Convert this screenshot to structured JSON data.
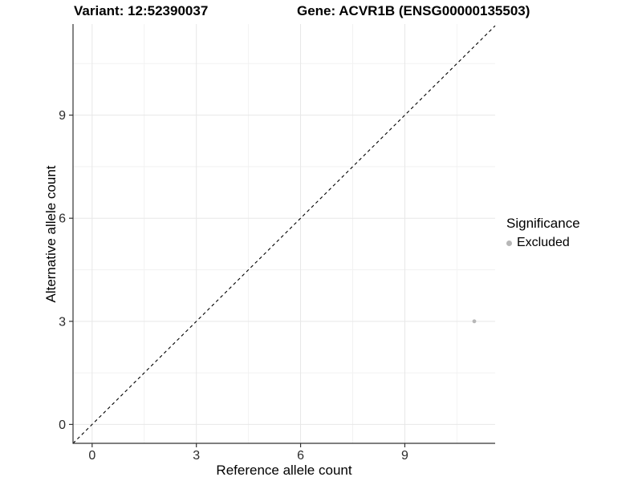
{
  "title": {
    "variant": "Variant: 12:52390037",
    "gene": "Gene: ACVR1B (ENSG00000135503)"
  },
  "axes": {
    "x_label": "Reference allele count",
    "y_label": "Alternative allele count"
  },
  "legend": {
    "title": "Significance",
    "items": [
      {
        "label": "Excluded",
        "color": "#b7b7b7"
      }
    ]
  },
  "colors": {
    "background": "#ffffff",
    "grid_major": "#e7e7e7",
    "grid_minor": "#f2f2f2",
    "axis_line": "#333333",
    "tick_label": "#2b2b2b",
    "reference_line": "#000000",
    "point": "#b7b7b7"
  },
  "chart_data": {
    "type": "scatter",
    "title": "Variant: 12:52390037 | Gene: ACVR1B (ENSG00000135503)",
    "xlabel": "Reference allele count",
    "ylabel": "Alternative allele count",
    "xlim": [
      -0.55,
      11.6
    ],
    "ylim": [
      -0.55,
      11.65
    ],
    "x_breaks": [
      0,
      3,
      6,
      9
    ],
    "y_breaks": [
      0,
      3,
      6,
      9
    ],
    "x_minor_breaks": [
      1.5,
      4.5,
      7.5,
      10.5
    ],
    "y_minor_breaks": [
      1.5,
      4.5,
      7.5,
      10.5
    ],
    "grid": true,
    "legend_position": "right",
    "legend_title": "Significance",
    "reference_line": {
      "type": "identity",
      "slope": 1,
      "intercept": 0,
      "style": "dashed"
    },
    "series": [
      {
        "name": "Excluded",
        "color": "#b7b7b7",
        "points": [
          {
            "x": 11,
            "y": 3
          }
        ]
      }
    ]
  }
}
